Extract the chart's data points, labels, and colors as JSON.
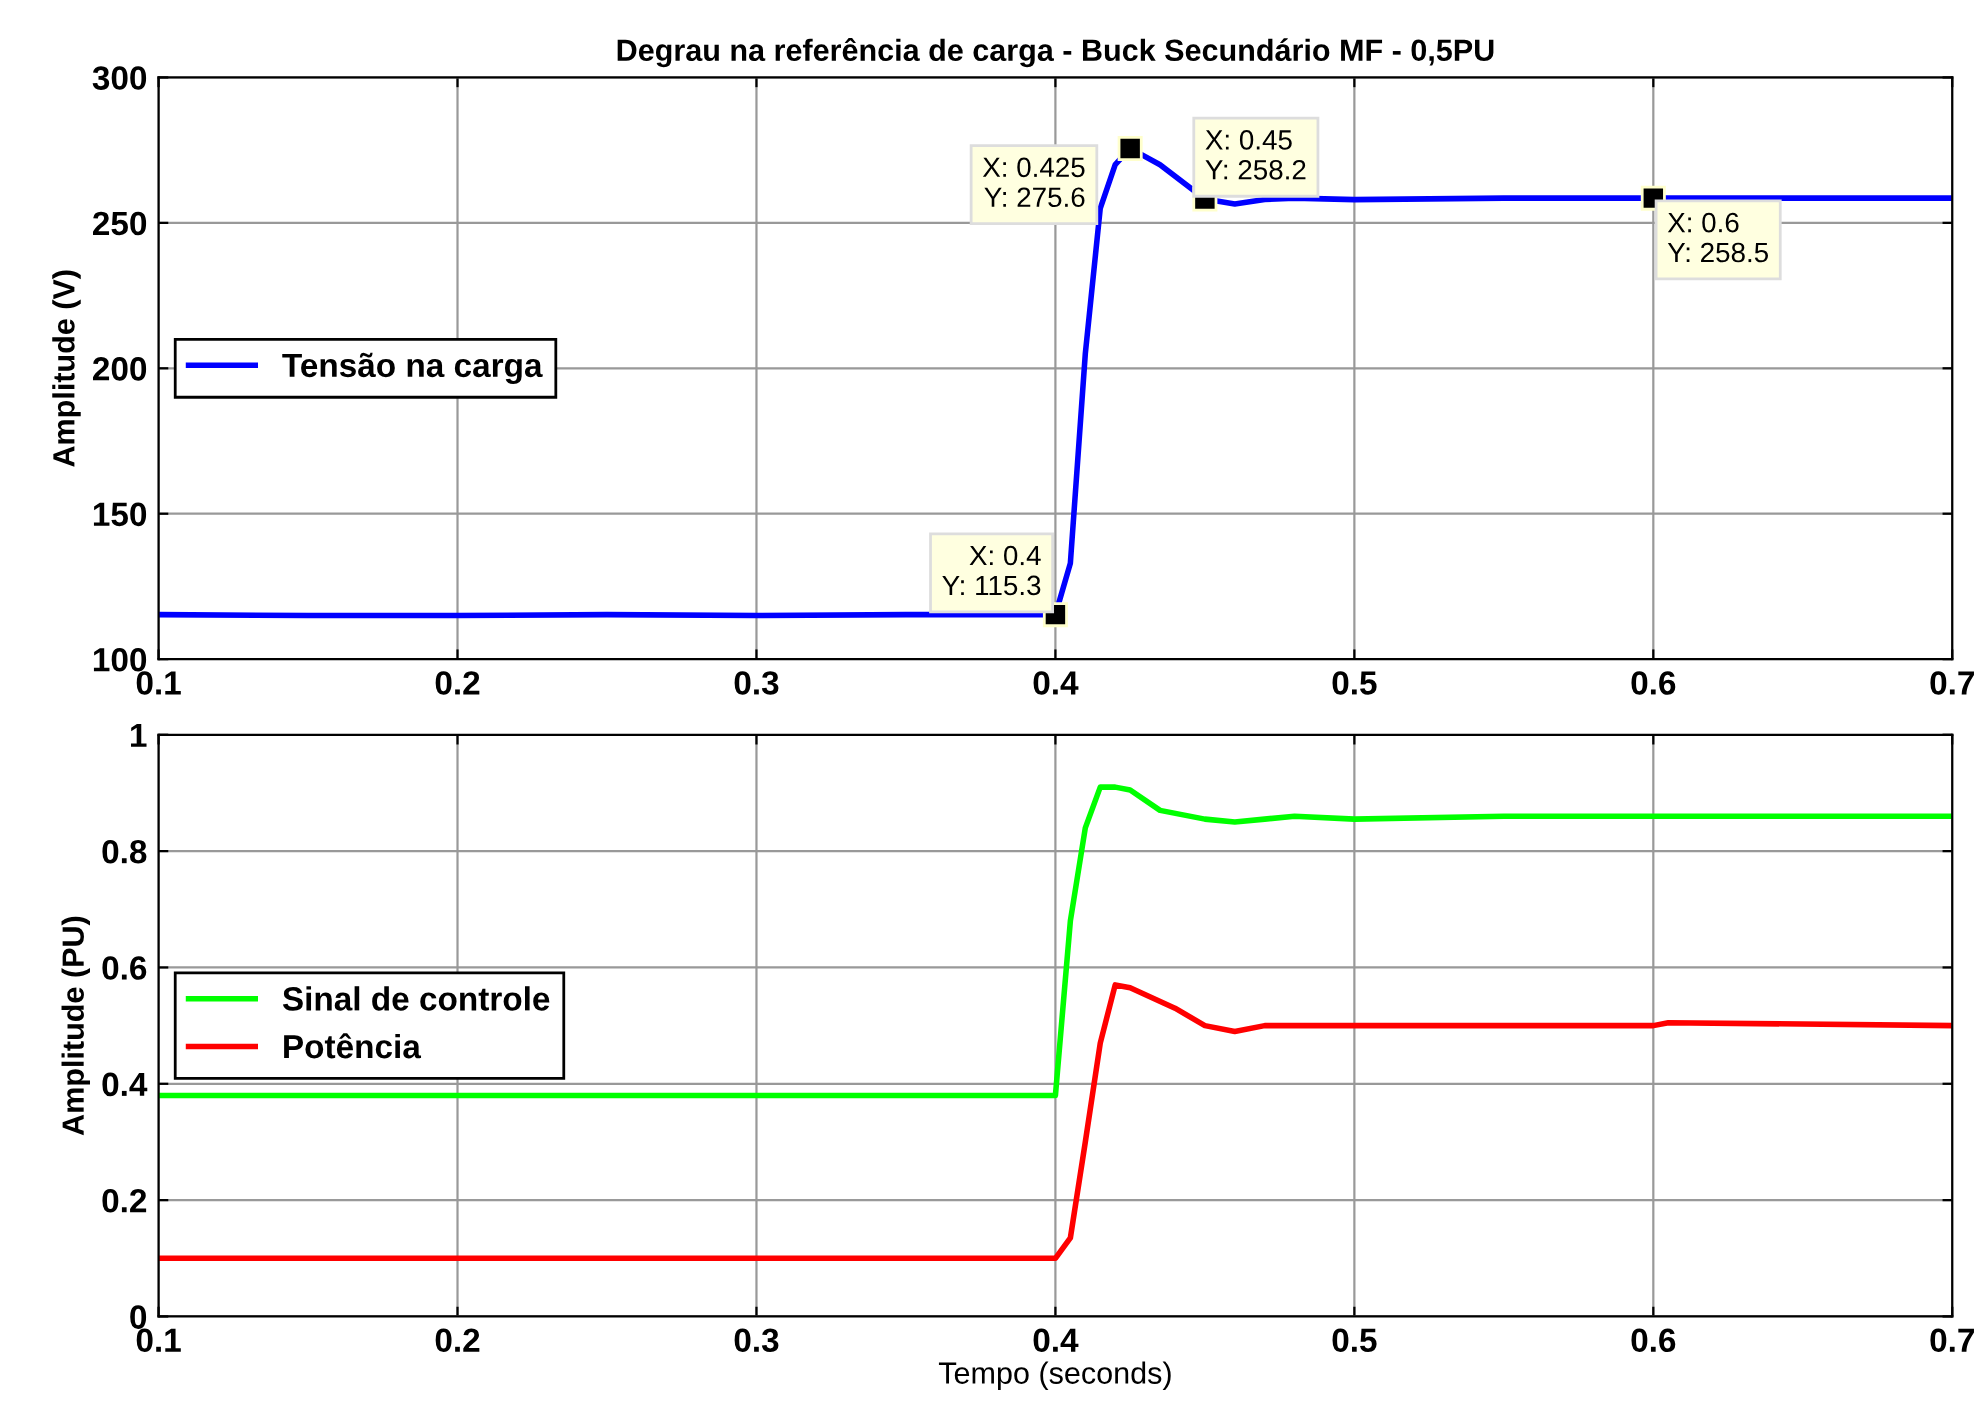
{
  "chart_data": [
    {
      "type": "line",
      "title": "Degrau na referência de carga - Buck Secundário MF - 0,5PU",
      "ylabel": "Amplitude (V)",
      "xlim": [
        0.1,
        0.7
      ],
      "xticks": [
        0.1,
        0.2,
        0.3,
        0.4,
        0.5,
        0.6,
        0.7
      ],
      "ylim": [
        100,
        300
      ],
      "yticks": [
        100,
        150,
        200,
        250,
        300
      ],
      "grid": true,
      "legend": "left",
      "series": [
        {
          "name": "Tensão na carga",
          "color": "#0000ff",
          "x": [
            0.1,
            0.15,
            0.2,
            0.25,
            0.3,
            0.35,
            0.4,
            0.405,
            0.41,
            0.415,
            0.42,
            0.425,
            0.435,
            0.45,
            0.46,
            0.47,
            0.48,
            0.5,
            0.55,
            0.6,
            0.65,
            0.7
          ],
          "values": [
            115.3,
            115,
            115,
            115.3,
            115,
            115.3,
            115.3,
            133,
            205,
            255,
            270,
            275.6,
            270,
            258.2,
            256.5,
            258,
            258.5,
            258,
            258.5,
            258.5,
            258.5,
            258.5
          ]
        }
      ],
      "annotations": [
        {
          "text": "X: 0.4\nY: 115.3",
          "x": 0.4,
          "y": 115.3
        },
        {
          "text": "X: 0.425\nY: 275.6",
          "x": 0.425,
          "y": 275.6
        },
        {
          "text": "X: 0.45\nY: 258.2",
          "x": 0.45,
          "y": 258.2
        },
        {
          "text": "X: 0.6\nY: 258.5",
          "x": 0.6,
          "y": 258.5
        }
      ]
    },
    {
      "type": "line",
      "xlabel": "Tempo (seconds)",
      "ylabel": "Amplitude (PU)",
      "xlim": [
        0.1,
        0.7
      ],
      "xticks": [
        0.1,
        0.2,
        0.3,
        0.4,
        0.5,
        0.6,
        0.7
      ],
      "ylim": [
        0,
        1
      ],
      "yticks": [
        0,
        0.2,
        0.4,
        0.6,
        0.8,
        1
      ],
      "grid": true,
      "legend": "left",
      "series": [
        {
          "name": "Sinal de controle",
          "color": "#00ff00",
          "x": [
            0.1,
            0.4,
            0.405,
            0.41,
            0.415,
            0.42,
            0.425,
            0.435,
            0.45,
            0.46,
            0.47,
            0.48,
            0.5,
            0.55,
            0.6,
            0.65,
            0.7
          ],
          "values": [
            0.38,
            0.38,
            0.68,
            0.84,
            0.91,
            0.91,
            0.905,
            0.87,
            0.855,
            0.85,
            0.855,
            0.86,
            0.855,
            0.86,
            0.86,
            0.86,
            0.86
          ]
        },
        {
          "name": "Potência",
          "color": "#ff0000",
          "x": [
            0.1,
            0.15,
            0.2,
            0.25,
            0.3,
            0.35,
            0.4,
            0.405,
            0.41,
            0.415,
            0.42,
            0.425,
            0.44,
            0.45,
            0.46,
            0.47,
            0.5,
            0.6,
            0.605,
            0.7
          ],
          "values": [
            0.1,
            0.1,
            0.1,
            0.1,
            0.1,
            0.1,
            0.1,
            0.135,
            0.3,
            0.47,
            0.57,
            0.565,
            0.53,
            0.5,
            0.49,
            0.5,
            0.5,
            0.5,
            0.505,
            0.5
          ]
        }
      ]
    }
  ]
}
